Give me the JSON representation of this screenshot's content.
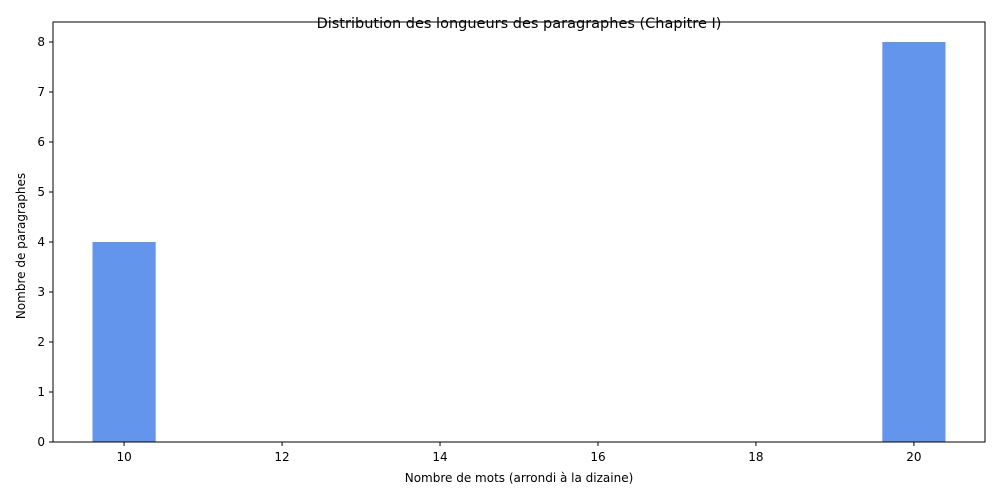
{
  "chart_data": {
    "type": "bar",
    "title": "Distribution des longueurs des paragraphes (Chapitre I)",
    "xlabel": "Nombre de mots (arrondi à la dizaine)",
    "ylabel": "Nombre de paragraphes",
    "x_ticks": [
      "10",
      "12",
      "14",
      "16",
      "18",
      "20"
    ],
    "y_ticks": [
      "0",
      "1",
      "2",
      "3",
      "4",
      "5",
      "6",
      "7",
      "8"
    ],
    "xlim": [
      9.1,
      20.9
    ],
    "ylim": [
      0,
      8.4
    ],
    "bar_width": 0.8,
    "bars": [
      {
        "x": 10,
        "value": 4
      },
      {
        "x": 20,
        "value": 8
      }
    ],
    "bar_color": "#6495ED",
    "grid": false,
    "legend": "none"
  }
}
